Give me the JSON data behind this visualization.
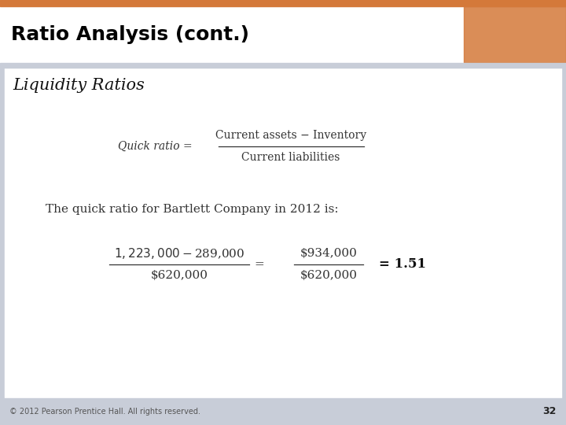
{
  "title": "Ratio Analysis (cont.)",
  "subtitle": "Liquidity Ratios",
  "header_bg_color": "#D4793A",
  "header_text_color": "#000000",
  "body_bg_color": "#C8CDD8",
  "content_bg_color": "#FFFFFF",
  "footer_text": "© 2012 Pearson Prentice Hall. All rights reserved.",
  "page_number": "32",
  "formula_label": "Quick ratio = ",
  "formula_numerator": "Current assets − Inventory",
  "formula_denominator": "Current liabilities",
  "description_text": "The quick ratio for Bartlett Company in 2012 is:",
  "calc_num1": "$1,223,000 − $289,000",
  "calc_den1": "$620,000",
  "calc_num2": "$934,000",
  "calc_den2": "$620,000",
  "calc_result": "= 1.51",
  "title_fontsize": 18,
  "subtitle_fontsize": 15,
  "formula_fontsize": 10,
  "desc_fontsize": 11,
  "calc_fontsize": 11,
  "footer_fontsize": 7,
  "page_fontsize": 9
}
